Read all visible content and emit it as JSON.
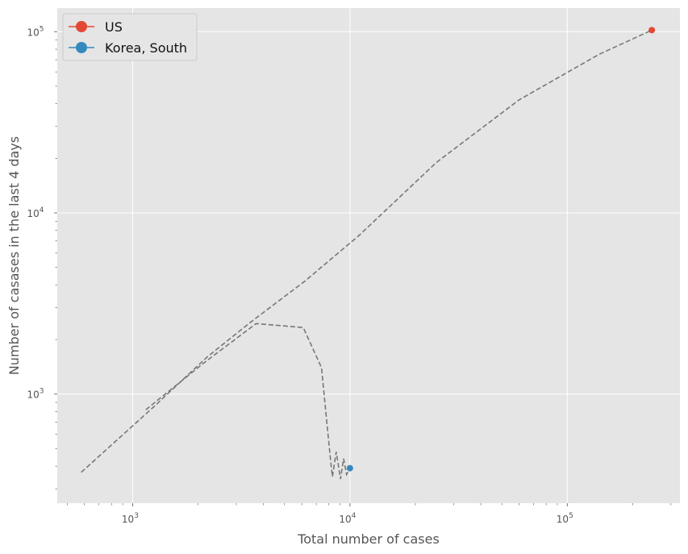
{
  "chart_data": {
    "type": "line",
    "title": "",
    "xlabel": "Total number of cases",
    "ylabel": "Number of casases in the last 4 days",
    "xscale": "log",
    "yscale": "log",
    "xlim": [
      450,
      330000
    ],
    "ylim": [
      250,
      135000
    ],
    "x_major_ticks": [
      {
        "value": 1000,
        "base": "10",
        "exp": "3"
      },
      {
        "value": 10000,
        "base": "10",
        "exp": "4"
      },
      {
        "value": 100000,
        "base": "10",
        "exp": "5"
      }
    ],
    "y_major_ticks": [
      {
        "value": 1000,
        "base": "10",
        "exp": "3"
      },
      {
        "value": 10000,
        "base": "10",
        "exp": "4"
      },
      {
        "value": 100000,
        "base": "10",
        "exp": "5"
      }
    ],
    "grid": true,
    "legend_position": "top-left",
    "trajectory_color": "#777777",
    "series": [
      {
        "name": "US",
        "color": "#E24A33",
        "x": [
          580,
          1250,
          2200,
          3500,
          6200,
          11000,
          25000,
          60000,
          140000,
          245000
        ],
        "y": [
          370,
          850,
          1600,
          2500,
          4200,
          7500,
          19000,
          42000,
          75000,
          102000
        ]
      },
      {
        "name": "Korea, South",
        "color": "#348ABD",
        "x": [
          1150,
          2150,
          3700,
          6100,
          7400,
          8100,
          8300,
          8650,
          9050,
          9350,
          9650,
          10000
        ],
        "y": [
          820,
          1500,
          2450,
          2330,
          1400,
          460,
          350,
          480,
          340,
          440,
          360,
          390
        ]
      }
    ]
  }
}
